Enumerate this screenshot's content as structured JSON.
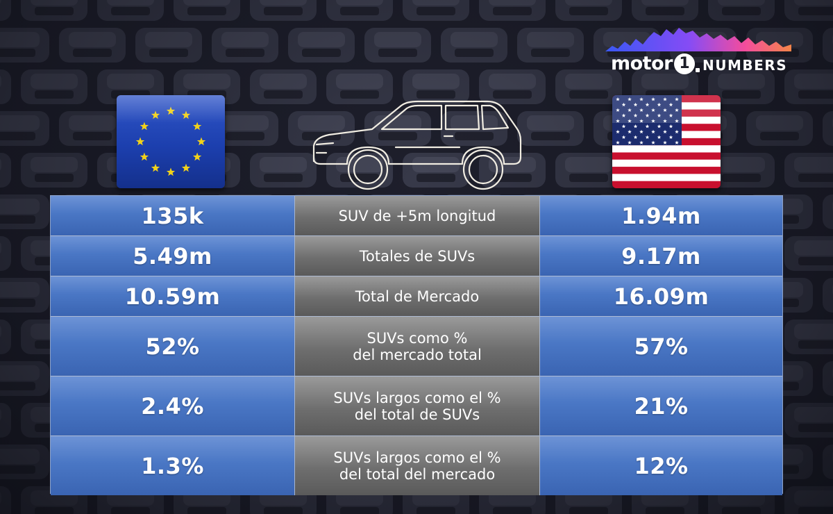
{
  "logo": {
    "text_motor": "motor",
    "text_one": "1",
    "text_numbers": "NUMBERS"
  },
  "flags": {
    "left_icon": "eu-flag-icon",
    "right_icon": "us-flag-icon"
  },
  "car_icon": "suv-outline-icon",
  "colors": {
    "value_cell_blue": "#4a77c5",
    "label_cell_gray": "#6e6e6e",
    "eu_blue": "#1c3fae",
    "eu_star": "#f2d21a",
    "us_red": "#c8102e",
    "us_blue": "#1c2c6e"
  },
  "table": {
    "rows": [
      {
        "eu": "135k",
        "label": [
          "SUV de +5m longitud"
        ],
        "us": "1.94m"
      },
      {
        "eu": "5.49m",
        "label": [
          "Totales de SUVs"
        ],
        "us": "9.17m"
      },
      {
        "eu": "10.59m",
        "label": [
          "Total de Mercado"
        ],
        "us": "16.09m"
      },
      {
        "eu": "52%",
        "label": [
          "SUVs como %",
          "del mercado total"
        ],
        "us": "57%"
      },
      {
        "eu": "2.4%",
        "label": [
          "SUVs largos como el %",
          "del total de SUVs"
        ],
        "us": "21%"
      },
      {
        "eu": "1.3%",
        "label": [
          "SUVs largos como el %",
          "del total del mercado"
        ],
        "us": "12%"
      }
    ]
  }
}
